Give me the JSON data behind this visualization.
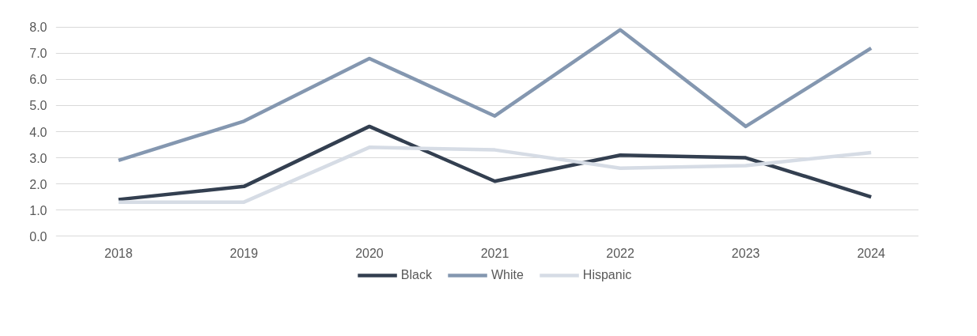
{
  "chart_data": {
    "type": "line",
    "categories": [
      "2018",
      "2019",
      "2020",
      "2021",
      "2022",
      "2023",
      "2024"
    ],
    "series": [
      {
        "name": "Black",
        "color": "#333f50",
        "values": [
          1.4,
          1.9,
          4.2,
          2.1,
          3.1,
          3.0,
          1.5
        ]
      },
      {
        "name": "White",
        "color": "#8497b0",
        "values": [
          2.9,
          4.4,
          6.8,
          4.6,
          7.9,
          4.2,
          7.2
        ]
      },
      {
        "name": "Hispanic",
        "color": "#d6dce5",
        "values": [
          1.3,
          1.3,
          3.4,
          3.3,
          2.6,
          2.7,
          3.2
        ]
      }
    ],
    "ylim": [
      0,
      8
    ],
    "yticks": [
      {
        "value": 0,
        "label": "0.0"
      },
      {
        "value": 1,
        "label": "1.0"
      },
      {
        "value": 2,
        "label": "2.0"
      },
      {
        "value": 3,
        "label": "3.0"
      },
      {
        "value": 4,
        "label": "4.0"
      },
      {
        "value": 5,
        "label": "5.0"
      },
      {
        "value": 6,
        "label": "6.0"
      },
      {
        "value": 7,
        "label": "7.0"
      },
      {
        "value": 8,
        "label": "8.0"
      }
    ],
    "grid": "y",
    "legend": "bottom",
    "marker": "none",
    "line_style": "solid"
  }
}
